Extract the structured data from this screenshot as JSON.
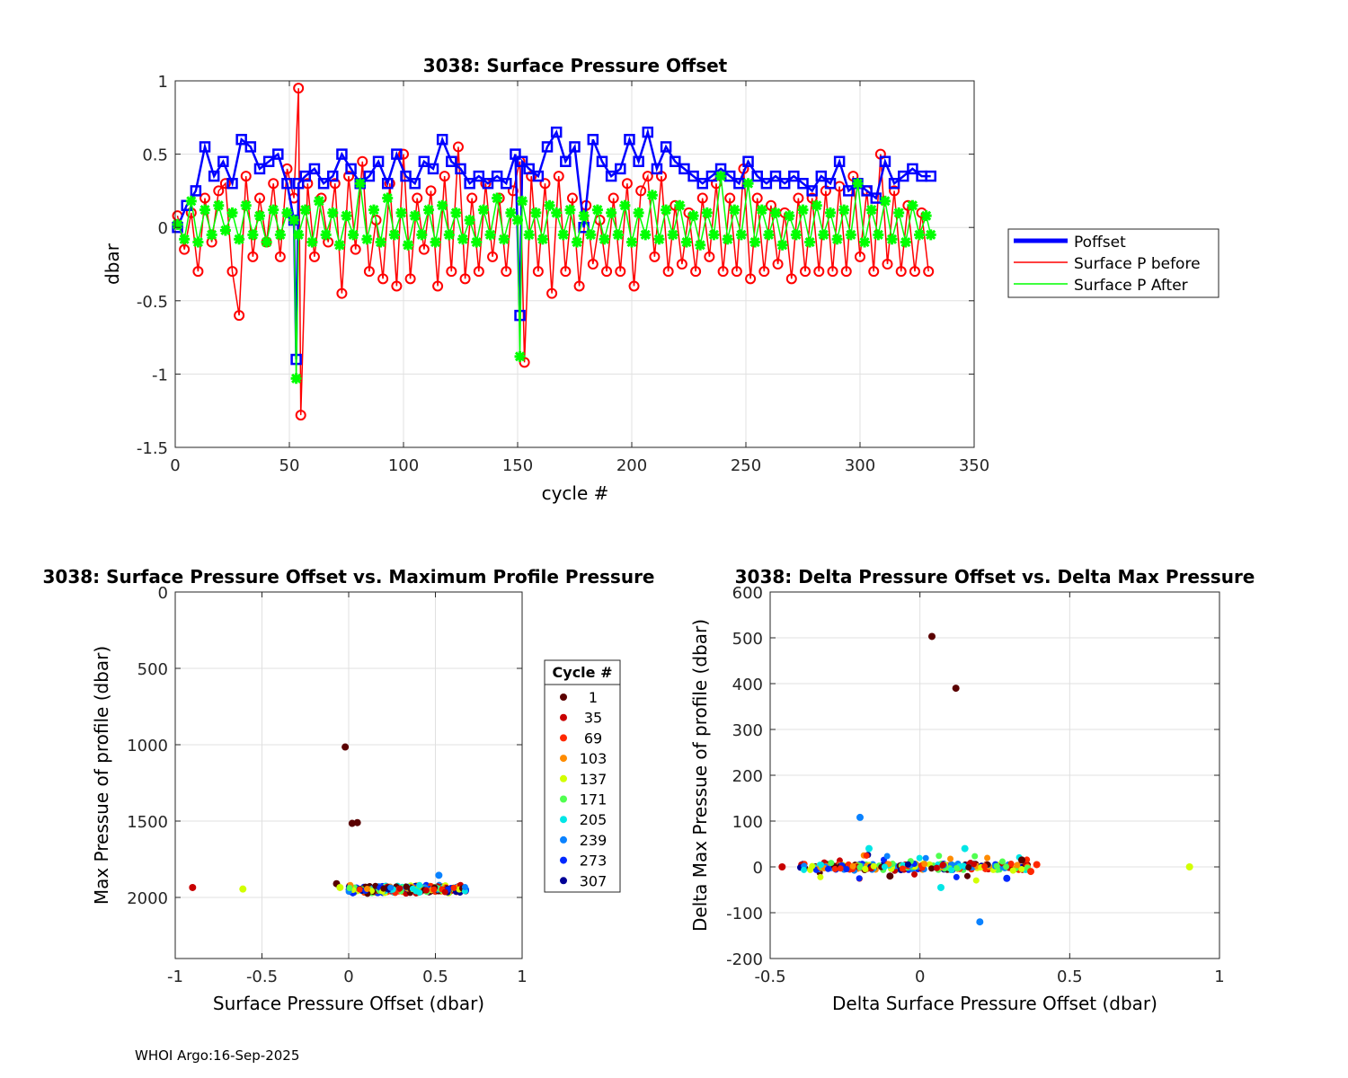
{
  "footer": "WHOI Argo:16-Sep-2025",
  "chart_data": [
    {
      "type": "line",
      "title": "3038: Surface Pressure Offset",
      "xlabel": "cycle #",
      "ylabel": "dbar",
      "xlim": [
        0,
        350
      ],
      "ylim": [
        -1.5,
        1
      ],
      "xticks": [
        0,
        50,
        100,
        150,
        200,
        250,
        300,
        350
      ],
      "yticks": [
        -1.5,
        -1,
        -0.5,
        0,
        0.5,
        1
      ],
      "xticklabels": [
        "0",
        "50",
        "100",
        "150",
        "200",
        "250",
        "300",
        "350"
      ],
      "yticklabels": [
        "-1.5",
        "-1",
        "-0.5",
        "0",
        "0.5",
        "1"
      ],
      "grid": true,
      "legend_position": "right",
      "series": [
        {
          "name": "Poffset",
          "color": "#0000ff",
          "marker": "square",
          "x": [
            1,
            5,
            9,
            13,
            17,
            21,
            25,
            29,
            33,
            37,
            41,
            45,
            49,
            52,
            53,
            54,
            57,
            61,
            65,
            69,
            73,
            77,
            81,
            85,
            89,
            93,
            97,
            101,
            105,
            109,
            113,
            117,
            121,
            125,
            129,
            133,
            137,
            141,
            145,
            149,
            151,
            152,
            155,
            159,
            163,
            167,
            171,
            175,
            179,
            183,
            187,
            191,
            195,
            199,
            203,
            207,
            211,
            215,
            219,
            223,
            227,
            231,
            235,
            239,
            243,
            247,
            251,
            255,
            259,
            263,
            267,
            271,
            275,
            279,
            283,
            287,
            291,
            295,
            299,
            303,
            307,
            311,
            315,
            319,
            323,
            327,
            331
          ],
          "y": [
            0.0,
            0.15,
            0.25,
            0.55,
            0.35,
            0.45,
            0.3,
            0.6,
            0.55,
            0.4,
            0.45,
            0.5,
            0.3,
            0.05,
            -0.9,
            0.3,
            0.35,
            0.4,
            0.3,
            0.35,
            0.5,
            0.4,
            0.3,
            0.35,
            0.45,
            0.3,
            0.5,
            0.35,
            0.3,
            0.45,
            0.4,
            0.6,
            0.45,
            0.4,
            0.3,
            0.35,
            0.3,
            0.35,
            0.3,
            0.5,
            -0.6,
            0.45,
            0.4,
            0.35,
            0.55,
            0.65,
            0.45,
            0.55,
            0.0,
            0.6,
            0.45,
            0.35,
            0.4,
            0.6,
            0.45,
            0.65,
            0.4,
            0.55,
            0.45,
            0.4,
            0.35,
            0.3,
            0.35,
            0.4,
            0.35,
            0.3,
            0.45,
            0.35,
            0.3,
            0.35,
            0.3,
            0.35,
            0.3,
            0.25,
            0.35,
            0.3,
            0.45,
            0.25,
            0.3,
            0.25,
            0.2,
            0.45,
            0.3,
            0.35,
            0.4,
            0.35,
            0.35
          ]
        },
        {
          "name": "Surface P before",
          "color": "#ff0000",
          "marker": "circle",
          "x": [
            1,
            4,
            7,
            10,
            13,
            16,
            19,
            22,
            25,
            28,
            31,
            34,
            37,
            40,
            43,
            46,
            49,
            52,
            54,
            55,
            58,
            61,
            64,
            67,
            70,
            73,
            76,
            79,
            82,
            85,
            88,
            91,
            94,
            97,
            100,
            103,
            106,
            109,
            112,
            115,
            118,
            121,
            124,
            127,
            130,
            133,
            136,
            139,
            142,
            145,
            148,
            151,
            153,
            156,
            159,
            162,
            165,
            168,
            171,
            174,
            177,
            180,
            183,
            186,
            189,
            192,
            195,
            198,
            201,
            204,
            207,
            210,
            213,
            216,
            219,
            222,
            225,
            228,
            231,
            234,
            237,
            240,
            243,
            246,
            249,
            252,
            255,
            258,
            261,
            264,
            267,
            270,
            273,
            276,
            279,
            282,
            285,
            288,
            291,
            294,
            297,
            300,
            303,
            306,
            309,
            312,
            315,
            318,
            321,
            324,
            327,
            330
          ],
          "y": [
            0.08,
            -0.15,
            0.1,
            -0.3,
            0.2,
            -0.1,
            0.25,
            0.3,
            -0.3,
            -0.6,
            0.35,
            -0.2,
            0.2,
            -0.1,
            0.3,
            -0.2,
            0.4,
            0.2,
            0.95,
            -1.28,
            0.3,
            -0.2,
            0.2,
            -0.1,
            0.3,
            -0.45,
            0.35,
            -0.15,
            0.45,
            -0.3,
            0.05,
            -0.35,
            0.3,
            -0.4,
            0.5,
            -0.35,
            0.2,
            -0.15,
            0.25,
            -0.4,
            0.35,
            -0.3,
            0.55,
            -0.35,
            0.2,
            -0.3,
            0.3,
            -0.2,
            0.2,
            -0.3,
            0.25,
            0.45,
            -0.92,
            0.35,
            -0.3,
            0.3,
            -0.45,
            0.35,
            -0.3,
            0.2,
            -0.4,
            0.15,
            -0.25,
            0.05,
            -0.3,
            0.2,
            -0.3,
            0.3,
            -0.4,
            0.25,
            0.35,
            -0.2,
            0.35,
            -0.3,
            0.15,
            -0.25,
            0.1,
            -0.3,
            0.2,
            -0.2,
            0.3,
            -0.3,
            0.2,
            -0.3,
            0.4,
            -0.35,
            0.2,
            -0.3,
            0.15,
            -0.25,
            0.1,
            -0.35,
            0.2,
            -0.3,
            0.2,
            -0.3,
            0.25,
            -0.3,
            0.28,
            -0.3,
            0.35,
            -0.2,
            0.25,
            -0.3,
            0.5,
            -0.25,
            0.25,
            -0.3,
            0.15,
            -0.3,
            0.1,
            -0.3
          ]
        },
        {
          "name": "Surface P After",
          "color": "#00ff00",
          "marker": "star",
          "x": [
            1,
            4,
            7,
            10,
            13,
            16,
            19,
            22,
            25,
            28,
            31,
            34,
            37,
            40,
            43,
            46,
            49,
            52,
            53,
            54,
            57,
            60,
            63,
            66,
            69,
            72,
            75,
            78,
            81,
            84,
            87,
            90,
            93,
            96,
            99,
            102,
            105,
            108,
            111,
            114,
            117,
            120,
            123,
            126,
            129,
            132,
            135,
            138,
            141,
            144,
            147,
            150,
            151,
            152,
            155,
            158,
            161,
            164,
            167,
            170,
            173,
            176,
            179,
            182,
            185,
            188,
            191,
            194,
            197,
            200,
            203,
            206,
            209,
            212,
            215,
            218,
            221,
            224,
            227,
            230,
            233,
            236,
            239,
            242,
            245,
            248,
            251,
            254,
            257,
            260,
            263,
            266,
            269,
            272,
            275,
            278,
            281,
            284,
            287,
            290,
            293,
            296,
            299,
            302,
            305,
            308,
            311,
            314,
            317,
            320,
            323,
            326,
            329,
            331
          ],
          "y": [
            0.02,
            -0.08,
            0.18,
            -0.1,
            0.12,
            -0.05,
            0.15,
            -0.02,
            0.1,
            -0.08,
            0.15,
            -0.05,
            0.08,
            -0.1,
            0.12,
            -0.05,
            0.1,
            0.05,
            -1.03,
            -0.05,
            0.12,
            -0.1,
            0.18,
            -0.05,
            0.1,
            -0.12,
            0.08,
            -0.05,
            0.3,
            -0.08,
            0.12,
            -0.1,
            0.2,
            -0.05,
            0.1,
            -0.12,
            0.08,
            -0.05,
            0.12,
            -0.1,
            0.15,
            -0.05,
            0.1,
            -0.08,
            0.05,
            -0.1,
            0.12,
            -0.05,
            0.2,
            -0.08,
            0.1,
            0.05,
            -0.88,
            0.18,
            -0.05,
            0.1,
            -0.08,
            0.15,
            0.1,
            -0.05,
            0.12,
            -0.1,
            0.08,
            -0.05,
            0.12,
            -0.08,
            0.1,
            -0.05,
            0.15,
            -0.1,
            0.1,
            -0.05,
            0.22,
            -0.08,
            0.12,
            -0.05,
            0.15,
            -0.1,
            0.08,
            -0.12,
            0.1,
            -0.05,
            0.35,
            -0.08,
            0.12,
            -0.05,
            0.3,
            -0.1,
            0.12,
            -0.05,
            0.1,
            -0.12,
            0.08,
            -0.05,
            0.12,
            -0.1,
            0.15,
            -0.05,
            0.1,
            -0.08,
            0.12,
            -0.05,
            0.3,
            -0.1,
            0.12,
            -0.05,
            0.18,
            -0.08,
            0.1,
            -0.1,
            0.15,
            -0.05,
            0.08,
            -0.05
          ]
        }
      ]
    },
    {
      "type": "scatter",
      "title": "3038: Surface Pressure Offset vs. Maximum Profile Pressure",
      "xlabel": "Surface Pressure Offset (dbar)",
      "ylabel": "Max Pressue of profile (dbar)",
      "xlim": [
        -1,
        1
      ],
      "ylim": [
        0,
        2400
      ],
      "y_reversed": true,
      "xticks": [
        -1,
        -0.5,
        0,
        0.5,
        1
      ],
      "yticks": [
        0,
        500,
        1000,
        1500,
        2000
      ],
      "xticklabels": [
        "-1",
        "-0.5",
        "0",
        "0.5",
        "1"
      ],
      "yticklabels": [
        "0",
        "500",
        "1000",
        "1500",
        "2000"
      ],
      "grid": true,
      "colorbar_title": "Cycle #",
      "colorbar_ticks": [
        "1",
        "35",
        "69",
        "103",
        "137",
        "171",
        "205",
        "239",
        "273",
        "307"
      ],
      "colorbar_colors": [
        "#5a0000",
        "#c80000",
        "#ff2800",
        "#ff8c00",
        "#d2ff00",
        "#50ff50",
        "#00e6e6",
        "#0a82ff",
        "#0028ff",
        "#000096"
      ],
      "points": [
        {
          "x": -0.02,
          "y": 1015,
          "cycle": 1
        },
        {
          "x": 0.02,
          "y": 1515,
          "cycle": 2
        },
        {
          "x": 0.05,
          "y": 1510,
          "cycle": 3
        },
        {
          "x": -0.9,
          "y": 1935,
          "cycle": 54
        },
        {
          "x": -0.61,
          "y": 1945,
          "cycle": 152
        },
        {
          "x": 0.52,
          "y": 1855,
          "cycle": 250
        },
        {
          "x": -0.07,
          "y": 1910,
          "cycle": 10
        },
        {
          "x": -0.05,
          "y": 1935,
          "cycle": 140
        }
      ],
      "cluster": {
        "x_min": 0.0,
        "x_max": 0.68,
        "y_min": 1900,
        "y_max": 1995
      }
    },
    {
      "type": "scatter",
      "title": "3038: Delta Pressure Offset vs. Delta Max Pressure",
      "xlabel": "Delta Surface Pressure Offset (dbar)",
      "ylabel": "Delta Max Pressue of profile (dbar)",
      "xlim": [
        -0.5,
        1
      ],
      "ylim": [
        -200,
        600
      ],
      "xticks": [
        -0.5,
        0,
        0.5,
        1
      ],
      "yticks": [
        -200,
        -100,
        0,
        100,
        200,
        300,
        400,
        500,
        600
      ],
      "xticklabels": [
        "-0.5",
        "0",
        "0.5",
        "1"
      ],
      "yticklabels": [
        "-200",
        "-100",
        "0",
        "100",
        "200",
        "300",
        "400",
        "500",
        "600"
      ],
      "grid": true,
      "points": [
        {
          "x": 0.04,
          "y": 503,
          "cycle": 2
        },
        {
          "x": 0.12,
          "y": 390,
          "cycle": 3
        },
        {
          "x": -0.2,
          "y": 108,
          "cycle": 240
        },
        {
          "x": 0.2,
          "y": -120,
          "cycle": 241
        },
        {
          "x": 0.9,
          "y": 0,
          "cycle": 153
        },
        {
          "x": -0.46,
          "y": 0,
          "cycle": 60
        },
        {
          "x": 0.15,
          "y": 40,
          "cycle": 230
        },
        {
          "x": -0.17,
          "y": 40,
          "cycle": 215
        },
        {
          "x": 0.07,
          "y": -45,
          "cycle": 235
        },
        {
          "x": -0.1,
          "y": -20,
          "cycle": 20
        },
        {
          "x": 0.39,
          "y": 5,
          "cycle": 80
        },
        {
          "x": 0.37,
          "y": -10,
          "cycle": 90
        },
        {
          "x": 0.34,
          "y": 15,
          "cycle": 30
        },
        {
          "x": 0.29,
          "y": -25,
          "cycle": 300
        }
      ],
      "cluster": {
        "x_min": -0.4,
        "x_max": 0.36,
        "y_min": -35,
        "y_max": 30
      }
    }
  ]
}
